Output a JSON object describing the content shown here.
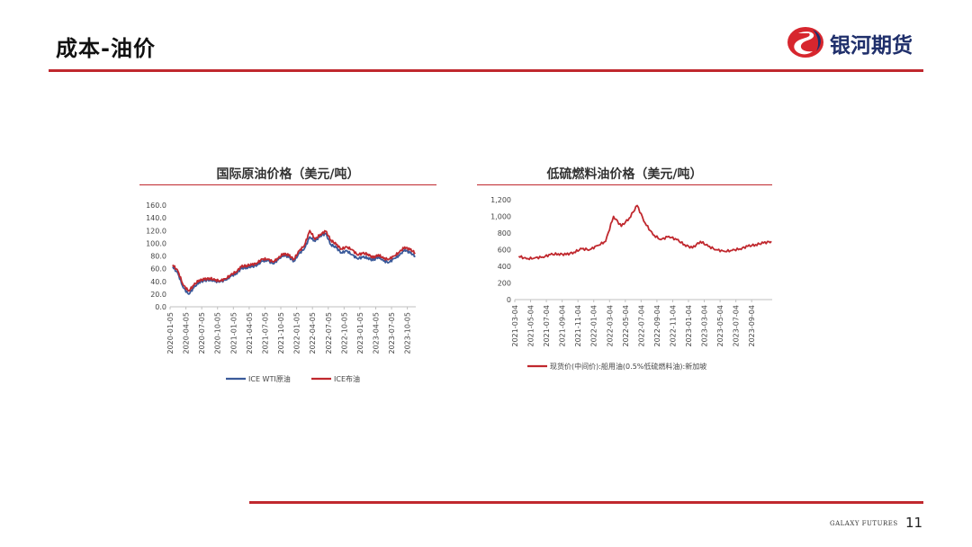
{
  "page": {
    "title": "成本-油价",
    "page_number": "11",
    "footer_brand": "GALAXY FUTURES"
  },
  "logo": {
    "text": "银河期货",
    "icon": "galaxy-logo-icon",
    "colors": {
      "red": "#d7262e",
      "blue": "#1f2f6b"
    }
  },
  "colors": {
    "accent": "#c0282e",
    "wti": "#3a5a9a",
    "brent": "#c0282e"
  },
  "chart_data": [
    {
      "type": "line",
      "title": "国际原油价格（美元/吨）",
      "ylim": [
        0,
        160
      ],
      "yticks": [
        "0.0",
        "20.0",
        "40.0",
        "60.0",
        "80.0",
        "100.0",
        "120.0",
        "140.0",
        "160.0"
      ],
      "xticks": [
        "2020-01-05",
        "2020-04-05",
        "2020-07-05",
        "2020-10-05",
        "2021-01-05",
        "2021-04-05",
        "2021-07-05",
        "2021-10-05",
        "2022-01-05",
        "2022-04-05",
        "2022-07-05",
        "2022-10-05",
        "2023-01-05",
        "2023-04-05",
        "2023-07-05",
        "2023-10-05"
      ],
      "legend": "bottom",
      "grid": false,
      "series": [
        {
          "name": "ICE WTI原油",
          "color": "#3a5a9a",
          "x": [
            "2020-01",
            "2020-02",
            "2020-03",
            "2020-04",
            "2020-05",
            "2020-06",
            "2020-07",
            "2020-08",
            "2020-09",
            "2020-10",
            "2020-11",
            "2020-12",
            "2021-01",
            "2021-02",
            "2021-03",
            "2021-04",
            "2021-05",
            "2021-06",
            "2021-07",
            "2021-08",
            "2021-09",
            "2021-10",
            "2021-11",
            "2021-12",
            "2022-01",
            "2022-02",
            "2022-03",
            "2022-04",
            "2022-05",
            "2022-06",
            "2022-07",
            "2022-08",
            "2022-09",
            "2022-10",
            "2022-11",
            "2022-12",
            "2023-01",
            "2023-02",
            "2023-03",
            "2023-04",
            "2023-05",
            "2023-06",
            "2023-07",
            "2023-08",
            "2023-09",
            "2023-10",
            "2023-11"
          ],
          "values": [
            63,
            52,
            30,
            20,
            30,
            39,
            41,
            43,
            40,
            40,
            42,
            48,
            52,
            60,
            62,
            63,
            66,
            72,
            73,
            68,
            74,
            82,
            78,
            72,
            84,
            92,
            110,
            103,
            112,
            115,
            98,
            93,
            85,
            88,
            82,
            76,
            78,
            77,
            73,
            79,
            72,
            70,
            76,
            81,
            90,
            85,
            80
          ]
        },
        {
          "name": "ICE布油",
          "color": "#c0282e",
          "x": [
            "2020-01",
            "2020-02",
            "2020-03",
            "2020-04",
            "2020-05",
            "2020-06",
            "2020-07",
            "2020-08",
            "2020-09",
            "2020-10",
            "2020-11",
            "2020-12",
            "2021-01",
            "2021-02",
            "2021-03",
            "2021-04",
            "2021-05",
            "2021-06",
            "2021-07",
            "2021-08",
            "2021-09",
            "2021-10",
            "2021-11",
            "2021-12",
            "2022-01",
            "2022-02",
            "2022-03",
            "2022-04",
            "2022-05",
            "2022-06",
            "2022-07",
            "2022-08",
            "2022-09",
            "2022-10",
            "2022-11",
            "2022-12",
            "2023-01",
            "2023-02",
            "2023-03",
            "2023-04",
            "2023-05",
            "2023-06",
            "2023-07",
            "2023-08",
            "2023-09",
            "2023-10",
            "2023-11"
          ],
          "values": [
            66,
            56,
            34,
            25,
            34,
            42,
            43,
            45,
            42,
            41,
            44,
            50,
            55,
            63,
            65,
            66,
            69,
            75,
            75,
            71,
            76,
            84,
            81,
            75,
            88,
            97,
            120,
            106,
            114,
            119,
            105,
            98,
            91,
            94,
            90,
            82,
            84,
            83,
            77,
            82,
            76,
            75,
            80,
            86,
            94,
            90,
            85
          ]
        }
      ]
    },
    {
      "type": "line",
      "title": "低硫燃料油价格（美元/吨）",
      "ylim": [
        0,
        1200
      ],
      "yticks": [
        "0",
        "200",
        "400",
        "600",
        "800",
        "1,000",
        "1,200"
      ],
      "xticks": [
        "2021-03-04",
        "2021-05-04",
        "2021-07-04",
        "2021-09-04",
        "2021-11-04",
        "2022-01-04",
        "2022-03-04",
        "2022-05-04",
        "2022-07-04",
        "2022-09-04",
        "2022-11-04",
        "2023-01-04",
        "2023-03-04",
        "2023-05-04",
        "2023-07-04",
        "2023-09-04"
      ],
      "legend": "bottom",
      "grid": false,
      "series": [
        {
          "name": "现货价(中间价):船用油(0.5%低硫燃料油):新加坡",
          "color": "#c0282e",
          "x": [
            "2021-03",
            "2021-04",
            "2021-05",
            "2021-06",
            "2021-07",
            "2021-08",
            "2021-09",
            "2021-10",
            "2021-11",
            "2021-12",
            "2022-01",
            "2022-02",
            "2022-03",
            "2022-04",
            "2022-05",
            "2022-06",
            "2022-07",
            "2022-08",
            "2022-09",
            "2022-10",
            "2022-11",
            "2022-12",
            "2023-01",
            "2023-02",
            "2023-03",
            "2023-04",
            "2023-05",
            "2023-06",
            "2023-07",
            "2023-08",
            "2023-09",
            "2023-10",
            "2023-11"
          ],
          "values": [
            520,
            490,
            500,
            510,
            540,
            550,
            540,
            570,
            610,
            600,
            650,
            700,
            1000,
            880,
            980,
            1130,
            920,
            780,
            720,
            760,
            720,
            660,
            620,
            700,
            640,
            600,
            580,
            590,
            610,
            640,
            660,
            680,
            700
          ]
        }
      ]
    }
  ]
}
